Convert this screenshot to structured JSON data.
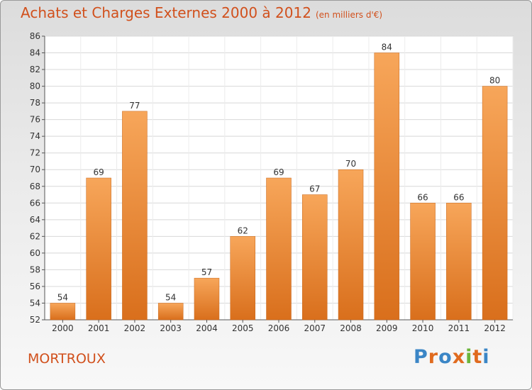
{
  "header": {
    "title": "Achats et Charges Externes 2000 à 2012",
    "subtitle": "(en milliers d'€)"
  },
  "footer": {
    "town": "MORTROUX",
    "logo": "Proxiti"
  },
  "colors": {
    "title": "#d1501c",
    "bar_top": "#f7a65a",
    "bar_bottom": "#d96f1c",
    "logo_letters": [
      "#3b86c6",
      "#e06b1f",
      "#3b86c6",
      "#e06b1f",
      "#6bb53a",
      "#e06b1f",
      "#3b86c6"
    ]
  },
  "chart_data": {
    "type": "bar",
    "title": "Achats et Charges Externes 2000 à 2012",
    "categories": [
      "2000",
      "2001",
      "2002",
      "2003",
      "2004",
      "2005",
      "2006",
      "2007",
      "2008",
      "2009",
      "2010",
      "2011",
      "2012"
    ],
    "values": [
      54,
      69,
      77,
      54,
      57,
      62,
      69,
      67,
      70,
      84,
      66,
      66,
      80
    ],
    "ylim": [
      52,
      86
    ],
    "yticks": [
      52,
      54,
      56,
      58,
      60,
      62,
      64,
      66,
      68,
      70,
      72,
      74,
      76,
      78,
      80,
      82,
      84,
      86
    ],
    "grid": true,
    "legend": "none"
  }
}
